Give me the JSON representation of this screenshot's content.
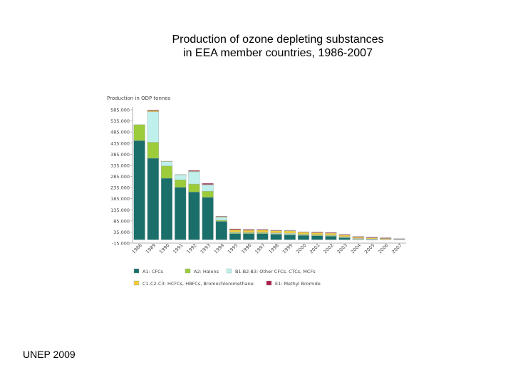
{
  "title_line1": "Production of ozone depleting substances",
  "title_line2": "in EEA member countries, 1986-2007",
  "footer": "UNEP 2009",
  "chart_data": {
    "type": "bar",
    "stacked": true,
    "ylabel": "Production in ODP tonnes",
    "ylim": [
      -15000,
      600000
    ],
    "yticks": [
      "585.000",
      "535.000",
      "485.000",
      "435.000",
      "385.000",
      "335.000",
      "285.000",
      "235.000",
      "185.000",
      "135.000",
      "85.000",
      "35.000",
      "-15.000"
    ],
    "ytick_values": [
      585000,
      535000,
      485000,
      435000,
      385000,
      335000,
      285000,
      235000,
      185000,
      135000,
      85000,
      35000,
      -15000
    ],
    "categories": [
      "1986",
      "1989",
      "1990",
      "1991",
      "1992",
      "1993",
      "1994",
      "1995",
      "1996",
      "1997",
      "1998",
      "1999",
      "2000",
      "2001",
      "2002",
      "2003",
      "2004",
      "2005",
      "2006",
      "2007"
    ],
    "series": [
      {
        "name": "A1: CFCs",
        "color": "#1a6f6a",
        "values": [
          446000,
          367000,
          277000,
          236000,
          215000,
          191000,
          83000,
          28000,
          28000,
          28000,
          25000,
          22000,
          20000,
          18000,
          16000,
          10000,
          2000,
          1000,
          0,
          0
        ]
      },
      {
        "name": "A2: Halons",
        "color": "#9ccc3a",
        "values": [
          72000,
          72000,
          55000,
          34000,
          36000,
          28000,
          5000,
          4000,
          4000,
          4000,
          3000,
          3000,
          4000,
          4000,
          3000,
          1000,
          1000,
          0,
          0,
          0
        ]
      },
      {
        "name": "B1-B2-B3: Other CFCs, CTCs, MCFs",
        "color": "#bff0ec",
        "values": [
          0,
          137000,
          20000,
          22000,
          55000,
          28000,
          13000,
          3000,
          2000,
          2000,
          3000,
          4000,
          1000,
          1000,
          2000,
          3000,
          3000,
          3000,
          2000,
          2000
        ]
      },
      {
        "name": "C1-C2-C3: HCFCs, HBFCs, Bromochloromethane",
        "color": "#f2cc3a",
        "values": [
          0,
          5000,
          2000,
          2000,
          2000,
          2000,
          3000,
          10000,
          9000,
          10000,
          10000,
          11000,
          9000,
          9000,
          9000,
          7000,
          6000,
          5000,
          4000,
          2000
        ]
      },
      {
        "name": "E1: Methyl Bromide",
        "color": "#b01c46",
        "values": [
          0,
          3000,
          0,
          0,
          4000,
          5000,
          2000,
          4000,
          4000,
          3000,
          2000,
          2000,
          2000,
          3000,
          3000,
          3000,
          3000,
          3000,
          3000,
          1000
        ]
      }
    ],
    "legend_position": "bottom"
  }
}
